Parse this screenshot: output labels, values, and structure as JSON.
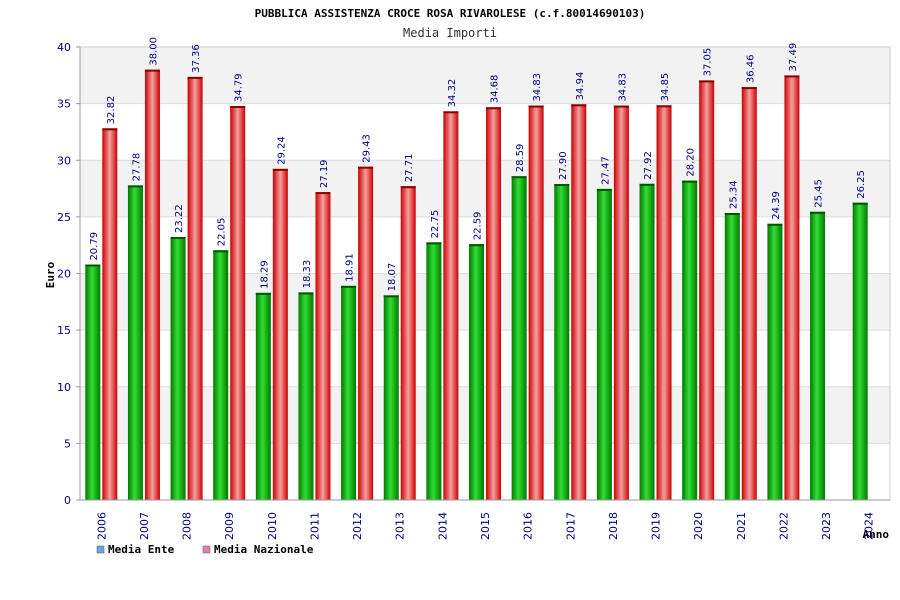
{
  "chart_data": {
    "type": "bar",
    "title": "PUBBLICA ASSISTENZA CROCE ROSA RIVAROLESE (c.f.80014690103)",
    "subtitle": "Media Importi",
    "xlabel": "Anno",
    "ylabel": "Euro",
    "ylim": [
      0,
      40
    ],
    "yticks": [
      "0",
      "5",
      "10",
      "15",
      "20",
      "25",
      "30",
      "35",
      "40"
    ],
    "categories": [
      "2006",
      "2007",
      "2008",
      "2009",
      "2010",
      "2011",
      "2012",
      "2013",
      "2014",
      "2015",
      "2016",
      "2017",
      "2018",
      "2019",
      "2020",
      "2021",
      "2022",
      "2023",
      "2024"
    ],
    "series": [
      {
        "name": "Media Ente",
        "color": "#00aa00",
        "legend_color": "#6aa6e8",
        "values": [
          20.79,
          27.78,
          23.22,
          22.05,
          18.29,
          18.33,
          18.91,
          18.07,
          22.75,
          22.59,
          28.59,
          27.9,
          27.47,
          27.92,
          28.2,
          25.34,
          24.39,
          25.45,
          26.25
        ],
        "labels": [
          "20.79",
          "27.78",
          "23.22",
          "22.05",
          "18.29",
          "18.33",
          "18.91",
          "18.07",
          "22.75",
          "22.59",
          "28.59",
          "27.90",
          "27.47",
          "27.92",
          "28.20",
          "25.34",
          "24.39",
          "25.45",
          "26.25"
        ]
      },
      {
        "name": "Media Nazionale",
        "color": "#ee2222",
        "legend_color": "#e080b0",
        "values": [
          32.82,
          38.0,
          37.36,
          34.79,
          29.24,
          27.19,
          29.43,
          27.71,
          34.32,
          34.68,
          34.83,
          34.94,
          34.83,
          34.85,
          37.05,
          36.46,
          37.49,
          null,
          null
        ],
        "labels": [
          "32.82",
          "38.00",
          "37.36",
          "34.79",
          "29.24",
          "27.19",
          "29.43",
          "27.71",
          "34.32",
          "34.68",
          "34.83",
          "34.94",
          "34.83",
          "34.85",
          "37.05",
          "36.46",
          "37.49",
          "",
          ""
        ]
      }
    ],
    "grid": true,
    "legend": "bottom-left"
  }
}
